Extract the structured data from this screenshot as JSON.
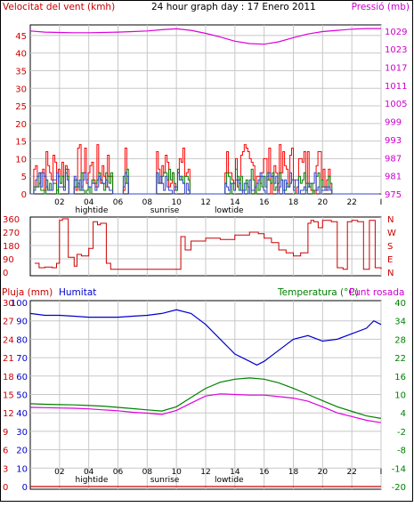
{
  "header": {
    "wind_label": "Velocitat del vent (kmh)",
    "title": "24 hour graph day : 17 Enero 2011",
    "pressure_label": "Pressió (mb)"
  },
  "bottom_header": {
    "rain_label": "Pluja (mm)",
    "humidity_label": "Humitat",
    "temp_label": "Temperatura (°C)",
    "dew_label": "Punt rosada"
  },
  "colors": {
    "wind": "#ff0000",
    "wind_avg": "#008000",
    "wind_dir": "#cc0000",
    "pressure": "#dd00dd",
    "humidity": "#0000cc",
    "temperature": "#008000",
    "dewpoint": "#dd00dd",
    "rain": "#cc0000",
    "grid": "#c8c8c8",
    "frame": "#000000"
  },
  "x_axis": {
    "ticks": [
      "02",
      "04",
      "06",
      "08",
      "10",
      "12",
      "14",
      "16",
      "18",
      "20",
      "22",
      "I"
    ],
    "events": [
      "hightide",
      "sunrise",
      "lowtide"
    ]
  },
  "chart_data": [
    {
      "type": "line",
      "name": "wind_pressure",
      "y_left": {
        "ticks": [
          "0",
          "5",
          "10",
          "15",
          "20",
          "25",
          "30",
          "35",
          "40",
          "45"
        ],
        "range": [
          0,
          48
        ]
      },
      "y_right": {
        "ticks": [
          "975",
          "981",
          "987",
          "993",
          "999",
          "1005",
          "1011",
          "1017",
          "1023",
          "1029"
        ],
        "range": [
          975,
          1031
        ]
      },
      "x_range": [
        0,
        24
      ],
      "series": [
        {
          "name": "Pressió (mb)",
          "axis": "right",
          "x": [
            0,
            1,
            2,
            3,
            4,
            5,
            6,
            7,
            8,
            9,
            10,
            11,
            12,
            13,
            14,
            15,
            16,
            17,
            18,
            19,
            20,
            21,
            22,
            23,
            24
          ],
          "y": [
            1029,
            1028.6,
            1028.5,
            1028.4,
            1028.4,
            1028.5,
            1028.6,
            1028.8,
            1029.0,
            1029.4,
            1029.7,
            1029.2,
            1028.2,
            1027.0,
            1025.6,
            1024.8,
            1024.6,
            1025.4,
            1026.8,
            1028.0,
            1028.8,
            1029.2,
            1029.6,
            1029.8,
            1029.8
          ]
        }
      ]
    },
    {
      "type": "line",
      "name": "wind_direction",
      "y_left": {
        "ticks": [
          "360",
          "270",
          "180",
          "90",
          "0"
        ],
        "range": [
          0,
          360
        ]
      },
      "y_right": {
        "ticks": [
          "N",
          "W",
          "S",
          "E",
          "N"
        ]
      },
      "x_range": [
        0,
        24
      ],
      "series": [
        {
          "name": "direction",
          "x": [
            0.3,
            0.6,
            1.0,
            1.5,
            1.8,
            2.0,
            2.2,
            2.6,
            3.0,
            3.2,
            3.5,
            4.0,
            4.3,
            4.6,
            4.8,
            5.0,
            5.2,
            5.5,
            6.0,
            7.0,
            8.0,
            9.0,
            10.0,
            10.3,
            10.6,
            11.0,
            12.0,
            13.0,
            14.0,
            15.0,
            15.6,
            16.0,
            16.5,
            17.0,
            17.5,
            18.0,
            18.5,
            19.0,
            19.2,
            19.4,
            19.7,
            20.0,
            20.3,
            20.6,
            21.0,
            21.4,
            21.7,
            22.0,
            22.4,
            22.8,
            23.2,
            23.6,
            24.0
          ],
          "y": [
            60,
            30,
            35,
            30,
            60,
            350,
            360,
            100,
            40,
            120,
            110,
            160,
            340,
            320,
            330,
            330,
            60,
            20,
            20,
            20,
            20,
            20,
            20,
            240,
            150,
            210,
            230,
            220,
            250,
            270,
            260,
            230,
            200,
            150,
            130,
            110,
            130,
            330,
            350,
            340,
            300,
            350,
            350,
            340,
            30,
            20,
            340,
            350,
            340,
            20,
            350,
            30,
            20
          ]
        }
      ]
    },
    {
      "type": "line",
      "name": "rain_humidity_temp",
      "y_left_rain": {
        "ticks": [
          "0",
          "3",
          "6",
          "9",
          "12",
          "15",
          "18",
          "21",
          "24",
          "27",
          "30"
        ],
        "range": [
          0,
          30
        ]
      },
      "y_left_humidity": {
        "ticks": [
          "0",
          "10",
          "20",
          "30",
          "40",
          "50",
          "60",
          "70",
          "80",
          "90",
          "100"
        ],
        "range": [
          0,
          100
        ]
      },
      "y_right": {
        "ticks": [
          "40",
          "34",
          "28",
          "22",
          "16",
          "10",
          "4",
          "-2",
          "-8",
          "-14",
          "-20"
        ],
        "range": [
          -20,
          40
        ]
      },
      "x_range": [
        0,
        24
      ],
      "series": [
        {
          "name": "Humitat",
          "x": [
            0,
            1,
            2,
            3,
            4,
            5,
            6,
            7,
            8,
            9,
            10,
            11,
            12,
            13,
            14,
            15,
            15.5,
            16,
            17,
            18,
            19,
            20,
            21,
            22,
            23,
            23.5,
            24
          ],
          "y": [
            94,
            93,
            93,
            92.5,
            92,
            92,
            92,
            92.5,
            93,
            94,
            96,
            94,
            88,
            80,
            72,
            68,
            66,
            68,
            74,
            80,
            82,
            79,
            80,
            83,
            86,
            90,
            88
          ]
        },
        {
          "name": "Temperatura (°C)",
          "x": [
            0,
            1,
            2,
            3,
            4,
            5,
            6,
            7,
            8,
            9,
            10,
            11,
            12,
            13,
            14,
            15,
            16,
            17,
            18,
            19,
            20,
            21,
            22,
            23,
            24
          ],
          "y": [
            7.0,
            6.8,
            6.7,
            6.6,
            6.4,
            6.2,
            5.8,
            5.4,
            5.0,
            4.6,
            6.0,
            9.0,
            12.0,
            14.0,
            15.0,
            15.4,
            15.0,
            13.8,
            12.0,
            10.0,
            8.0,
            6.0,
            4.5,
            3.0,
            2.2
          ]
        },
        {
          "name": "Punt rosada",
          "x": [
            0,
            1,
            2,
            3,
            4,
            5,
            6,
            7,
            8,
            9,
            10,
            11,
            12,
            13,
            14,
            15,
            16,
            17,
            18,
            19,
            20,
            21,
            22,
            23,
            24
          ],
          "y": [
            5.8,
            5.7,
            5.6,
            5.5,
            5.3,
            5.0,
            4.7,
            4.2,
            3.9,
            3.5,
            4.8,
            7.2,
            9.5,
            10.2,
            10.0,
            9.8,
            9.8,
            9.3,
            8.8,
            7.8,
            6.0,
            4.0,
            2.8,
            1.6,
            0.8
          ]
        },
        {
          "name": "Pluja (mm)",
          "x": [
            0,
            24
          ],
          "y": [
            0,
            0
          ]
        }
      ]
    }
  ]
}
